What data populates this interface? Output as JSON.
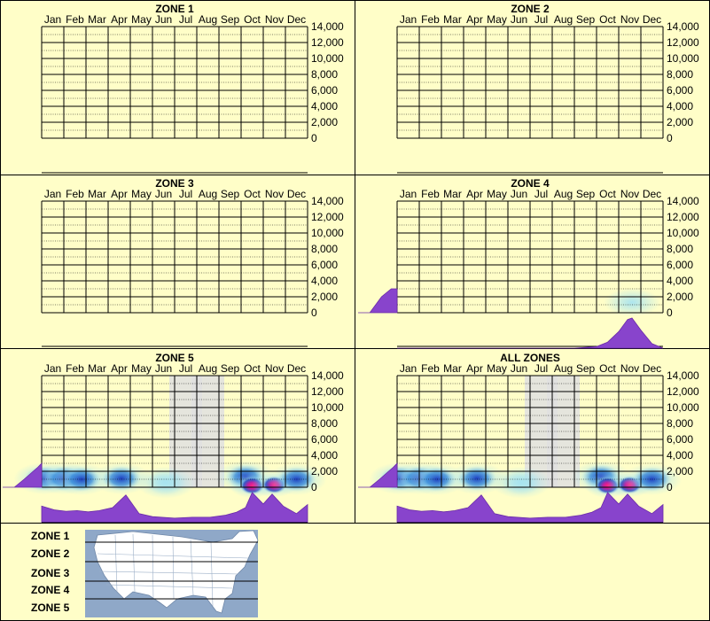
{
  "months": [
    "Jan",
    "Feb",
    "Mar",
    "Apr",
    "May",
    "Jun",
    "Jul",
    "Aug",
    "Sep",
    "Oct",
    "Nov",
    "Dec"
  ],
  "yticks": [
    "14,000",
    "12,000",
    "10,000",
    "8,000",
    "6,000",
    "4,000",
    "2,000",
    "0"
  ],
  "colors": {
    "background": "#fffec8",
    "border": "#000000",
    "density_fill": "#8844cc",
    "heat_cool": "#a8e4f0",
    "heat_mid": "#2040c0",
    "heat_hot": "#ff2080",
    "shaded_band": "#e0e0e0",
    "map_water": "#8fa8c8",
    "map_land": "#ffffff"
  },
  "chart_data": [
    {
      "type": "heatmap",
      "title": "ZONE 1",
      "x_categories": [
        "Jan",
        "Feb",
        "Mar",
        "Apr",
        "May",
        "Jun",
        "Jul",
        "Aug",
        "Sep",
        "Oct",
        "Nov",
        "Dec"
      ],
      "ylim": [
        0,
        14000
      ],
      "points": [],
      "month_density": [],
      "value_density": [],
      "shaded_months": []
    },
    {
      "type": "heatmap",
      "title": "ZONE 2",
      "x_categories": [
        "Jan",
        "Feb",
        "Mar",
        "Apr",
        "May",
        "Jun",
        "Jul",
        "Aug",
        "Sep",
        "Oct",
        "Nov",
        "Dec"
      ],
      "ylim": [
        0,
        14000
      ],
      "points": [],
      "month_density": [],
      "value_density": [],
      "shaded_months": []
    },
    {
      "type": "heatmap",
      "title": "ZONE 3",
      "x_categories": [
        "Jan",
        "Feb",
        "Mar",
        "Apr",
        "May",
        "Jun",
        "Jul",
        "Aug",
        "Sep",
        "Oct",
        "Nov",
        "Dec"
      ],
      "ylim": [
        0,
        14000
      ],
      "points": [],
      "month_density": [],
      "value_density": [],
      "shaded_months": []
    },
    {
      "type": "heatmap",
      "title": "ZONE 4",
      "x_categories": [
        "Jan",
        "Feb",
        "Mar",
        "Apr",
        "May",
        "Jun",
        "Jul",
        "Aug",
        "Sep",
        "Oct",
        "Nov",
        "Dec"
      ],
      "ylim": [
        0,
        14000
      ],
      "points": [
        {
          "month": 10.6,
          "value": 1300,
          "intensity": 0.6
        }
      ],
      "month_density": [
        0,
        0,
        0,
        0,
        0,
        0,
        0,
        0,
        0,
        0.05,
        0.2,
        0.55,
        0.95,
        1.0,
        0.6,
        0.15,
        0
      ],
      "month_density_x": [
        0,
        1,
        2,
        3,
        4,
        5,
        6,
        7,
        8,
        9,
        9.5,
        10,
        10.4,
        10.6,
        11,
        11.5,
        12
      ],
      "value_density": [
        {
          "value": 0,
          "density": 0.3
        },
        {
          "value": 2000,
          "density": 0.6
        },
        {
          "value": 3000,
          "density": 0.85
        }
      ],
      "shaded_months": []
    },
    {
      "type": "heatmap",
      "title": "ZONE 5",
      "x_categories": [
        "Jan",
        "Feb",
        "Mar",
        "Apr",
        "May",
        "Jun",
        "Jul",
        "Aug",
        "Sep",
        "Oct",
        "Nov",
        "Dec"
      ],
      "ylim": [
        0,
        14000
      ],
      "points": [
        {
          "month": 0.1,
          "value": 1100,
          "intensity": 0.8
        },
        {
          "month": 1.0,
          "value": 1100,
          "intensity": 0.6
        },
        {
          "month": 1.8,
          "value": 1000,
          "intensity": 0.55
        },
        {
          "month": 3.6,
          "value": 1100,
          "intensity": 0.8
        },
        {
          "month": 5.6,
          "value": 600,
          "intensity": 0.4
        },
        {
          "month": 9.2,
          "value": 1300,
          "intensity": 0.85
        },
        {
          "month": 9.5,
          "value": 200,
          "intensity": 1.0
        },
        {
          "month": 10.5,
          "value": 300,
          "intensity": 1.0
        },
        {
          "month": 11.5,
          "value": 1000,
          "intensity": 0.7
        }
      ],
      "month_density": [
        0.55,
        0.42,
        0.38,
        0.4,
        0.36,
        0.4,
        0.5,
        0.92,
        0.3,
        0.2,
        0.15,
        0.18,
        0.18,
        0.25,
        0.35,
        0.5,
        1.0,
        0.62,
        0.95,
        0.55,
        0.3,
        0.6
      ],
      "month_density_x": [
        0,
        0.6,
        1.1,
        1.6,
        2.1,
        2.6,
        3.2,
        3.8,
        4.4,
        5.0,
        6.0,
        6.8,
        7.6,
        8.3,
        8.8,
        9.2,
        9.5,
        10.0,
        10.4,
        10.9,
        11.5,
        12
      ],
      "value_density": [
        {
          "value": 0,
          "density": 0.3
        },
        {
          "value": 1000,
          "density": 0.55
        },
        {
          "value": 2500,
          "density": 0.9
        },
        {
          "value": 3000,
          "density": 1.0
        }
      ],
      "shaded_months": [
        6,
        7
      ]
    },
    {
      "type": "heatmap",
      "title": "ALL ZONES",
      "x_categories": [
        "Jan",
        "Feb",
        "Mar",
        "Apr",
        "May",
        "Jun",
        "Jul",
        "Aug",
        "Sep",
        "Oct",
        "Nov",
        "Dec"
      ],
      "ylim": [
        0,
        14000
      ],
      "points": [
        {
          "month": 0.1,
          "value": 1100,
          "intensity": 0.8
        },
        {
          "month": 1.0,
          "value": 1100,
          "intensity": 0.6
        },
        {
          "month": 1.8,
          "value": 1000,
          "intensity": 0.55
        },
        {
          "month": 3.6,
          "value": 1100,
          "intensity": 0.8
        },
        {
          "month": 5.6,
          "value": 600,
          "intensity": 0.4
        },
        {
          "month": 9.2,
          "value": 1300,
          "intensity": 0.85
        },
        {
          "month": 9.5,
          "value": 200,
          "intensity": 1.0
        },
        {
          "month": 10.5,
          "value": 300,
          "intensity": 1.0
        },
        {
          "month": 11.5,
          "value": 1000,
          "intensity": 0.7
        }
      ],
      "month_density": [
        0.55,
        0.42,
        0.38,
        0.4,
        0.36,
        0.4,
        0.5,
        0.92,
        0.3,
        0.2,
        0.15,
        0.18,
        0.18,
        0.25,
        0.35,
        0.5,
        1.0,
        0.62,
        0.95,
        0.55,
        0.3,
        0.6
      ],
      "month_density_x": [
        0,
        0.6,
        1.1,
        1.6,
        2.1,
        2.6,
        3.2,
        3.8,
        4.4,
        5.0,
        6.0,
        6.8,
        7.6,
        8.3,
        8.8,
        9.2,
        9.5,
        10.0,
        10.4,
        10.9,
        11.5,
        12
      ],
      "value_density": [
        {
          "value": 0,
          "density": 0.3
        },
        {
          "value": 1000,
          "density": 0.55
        },
        {
          "value": 2500,
          "density": 0.9
        },
        {
          "value": 3000,
          "density": 1.0
        }
      ],
      "shaded_months": [
        6,
        7
      ]
    }
  ],
  "legend": {
    "zones": [
      "ZONE 1",
      "ZONE 2",
      "ZONE 3",
      "ZONE 4",
      "ZONE 5"
    ]
  }
}
